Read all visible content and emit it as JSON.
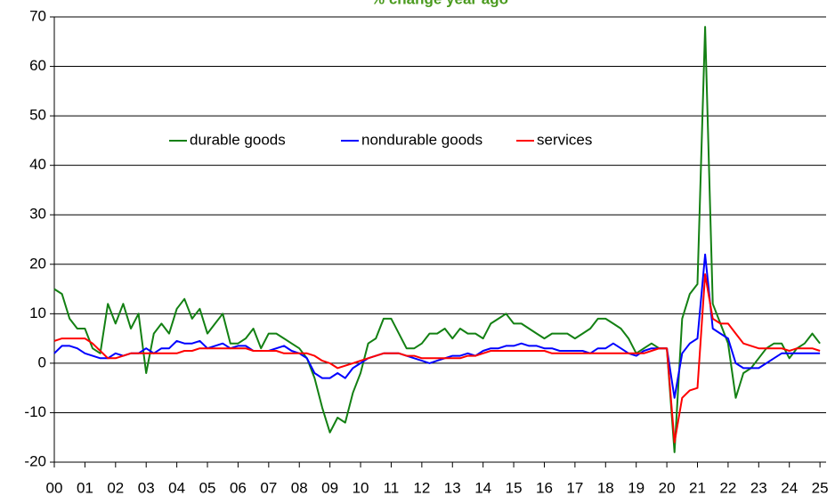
{
  "chart_data": {
    "type": "line",
    "title": "% change year ago",
    "title_color": "#4a9a1e",
    "x": [
      2000,
      2000.25,
      2000.5,
      2000.75,
      2001,
      2001.25,
      2001.5,
      2001.75,
      2002,
      2002.25,
      2002.5,
      2002.75,
      2003,
      2003.25,
      2003.5,
      2003.75,
      2004,
      2004.25,
      2004.5,
      2004.75,
      2005,
      2005.25,
      2005.5,
      2005.75,
      2006,
      2006.25,
      2006.5,
      2006.75,
      2007,
      2007.25,
      2007.5,
      2007.75,
      2008,
      2008.25,
      2008.5,
      2008.75,
      2009,
      2009.25,
      2009.5,
      2009.75,
      2010,
      2010.25,
      2010.5,
      2010.75,
      2011,
      2011.25,
      2011.5,
      2011.75,
      2012,
      2012.25,
      2012.5,
      2012.75,
      2013,
      2013.25,
      2013.5,
      2013.75,
      2014,
      2014.25,
      2014.5,
      2014.75,
      2015,
      2015.25,
      2015.5,
      2015.75,
      2016,
      2016.25,
      2016.5,
      2016.75,
      2017,
      2017.25,
      2017.5,
      2017.75,
      2018,
      2018.25,
      2018.5,
      2018.75,
      2019,
      2019.25,
      2019.5,
      2019.75,
      2020,
      2020.25,
      2020.5,
      2020.75,
      2021,
      2021.25,
      2021.5,
      2021.75,
      2022,
      2022.25,
      2022.5,
      2022.75,
      2023,
      2023.25,
      2023.5,
      2023.75,
      2024,
      2024.25,
      2024.5,
      2024.75,
      2025
    ],
    "series": [
      {
        "name": "durable goods",
        "color": "#138013",
        "values": [
          15,
          14,
          9,
          7,
          7,
          3,
          2,
          12,
          8,
          12,
          7,
          10,
          -2,
          6,
          8,
          6,
          11,
          13,
          9,
          11,
          6,
          8,
          10,
          4,
          4,
          5,
          7,
          3,
          6,
          6,
          5,
          4,
          3,
          1,
          -3,
          -9,
          -14,
          -11,
          -12,
          -6,
          -2,
          4,
          5,
          9,
          9,
          6,
          3,
          3,
          4,
          6,
          6,
          7,
          5,
          7,
          6,
          6,
          5,
          8,
          9,
          10,
          8,
          8,
          7,
          6,
          5,
          6,
          6,
          6,
          5,
          6,
          7,
          9,
          9,
          8,
          7,
          5,
          2,
          3,
          4,
          3,
          3,
          -18,
          9,
          14,
          16,
          68,
          12,
          8,
          4,
          -7,
          -2,
          -1,
          1,
          3,
          4,
          4,
          1,
          3,
          4,
          6,
          4
        ]
      },
      {
        "name": "nondurable goods",
        "color": "#0000ff",
        "values": [
          2,
          3.5,
          3.5,
          3,
          2,
          1.5,
          1,
          1,
          2,
          1.5,
          2,
          2,
          3,
          2,
          3,
          3,
          4.5,
          4,
          4,
          4.5,
          3,
          3.5,
          4,
          3,
          3.5,
          3.5,
          2.5,
          2.5,
          2.5,
          3,
          3.5,
          2.5,
          2,
          1,
          -2,
          -3,
          -3,
          -2,
          -3,
          -1,
          0,
          1,
          1.5,
          2,
          2,
          2,
          1.5,
          1,
          0.5,
          0,
          0.5,
          1,
          1.5,
          1.5,
          2,
          1.5,
          2.5,
          3,
          3,
          3.5,
          3.5,
          4,
          3.5,
          3.5,
          3,
          3,
          2.5,
          2.5,
          2.5,
          2.5,
          2,
          3,
          3,
          4,
          3,
          2,
          1.5,
          2.5,
          3,
          3,
          3,
          -7,
          2,
          4,
          5,
          22,
          7,
          6,
          5,
          0,
          -1,
          -1,
          -1,
          0,
          1,
          2,
          2,
          2,
          2,
          2,
          2
        ]
      },
      {
        "name": "services",
        "color": "#ff0000",
        "values": [
          4.5,
          5,
          5,
          5,
          5,
          4,
          2.5,
          1,
          1,
          1.5,
          2,
          2,
          2,
          2,
          2,
          2,
          2,
          2.5,
          2.5,
          3,
          3,
          3,
          3,
          3,
          3,
          3,
          2.5,
          2.5,
          2.5,
          2.5,
          2,
          2,
          2,
          2,
          1.5,
          0.5,
          0,
          -1,
          -0.5,
          0,
          0.5,
          1,
          1.5,
          2,
          2,
          2,
          1.5,
          1.5,
          1,
          1,
          1,
          1,
          1,
          1,
          1.5,
          1.5,
          2,
          2.5,
          2.5,
          2.5,
          2.5,
          2.5,
          2.5,
          2.5,
          2.5,
          2,
          2,
          2,
          2,
          2,
          2,
          2,
          2,
          2,
          2,
          2,
          2,
          2,
          2.5,
          3,
          3,
          -16,
          -7,
          -5.5,
          -5,
          18,
          9,
          8,
          8,
          6,
          4,
          3.5,
          3,
          3,
          3,
          3,
          2.5,
          3,
          3,
          3,
          2.5
        ]
      }
    ],
    "xlim": [
      2000,
      2025.2
    ],
    "xticks": [
      {
        "value": 2000,
        "label": "00"
      },
      {
        "value": 2001,
        "label": "01"
      },
      {
        "value": 2002,
        "label": "02"
      },
      {
        "value": 2003,
        "label": "03"
      },
      {
        "value": 2004,
        "label": "04"
      },
      {
        "value": 2005,
        "label": "05"
      },
      {
        "value": 2006,
        "label": "06"
      },
      {
        "value": 2007,
        "label": "07"
      },
      {
        "value": 2008,
        "label": "08"
      },
      {
        "value": 2009,
        "label": "09"
      },
      {
        "value": 2010,
        "label": "10"
      },
      {
        "value": 2011,
        "label": "11"
      },
      {
        "value": 2012,
        "label": "12"
      },
      {
        "value": 2013,
        "label": "13"
      },
      {
        "value": 2014,
        "label": "14"
      },
      {
        "value": 2015,
        "label": "15"
      },
      {
        "value": 2016,
        "label": "16"
      },
      {
        "value": 2017,
        "label": "17"
      },
      {
        "value": 2018,
        "label": "18"
      },
      {
        "value": 2019,
        "label": "19"
      },
      {
        "value": 2020,
        "label": "20"
      },
      {
        "value": 2021,
        "label": "21"
      },
      {
        "value": 2022,
        "label": "22"
      },
      {
        "value": 2023,
        "label": "23"
      },
      {
        "value": 2024,
        "label": "24"
      },
      {
        "value": 2025,
        "label": "25"
      }
    ],
    "ylim": [
      -20,
      70
    ],
    "yticks": [
      -20,
      -10,
      0,
      10,
      20,
      30,
      40,
      50,
      60,
      70
    ],
    "grid": true
  }
}
